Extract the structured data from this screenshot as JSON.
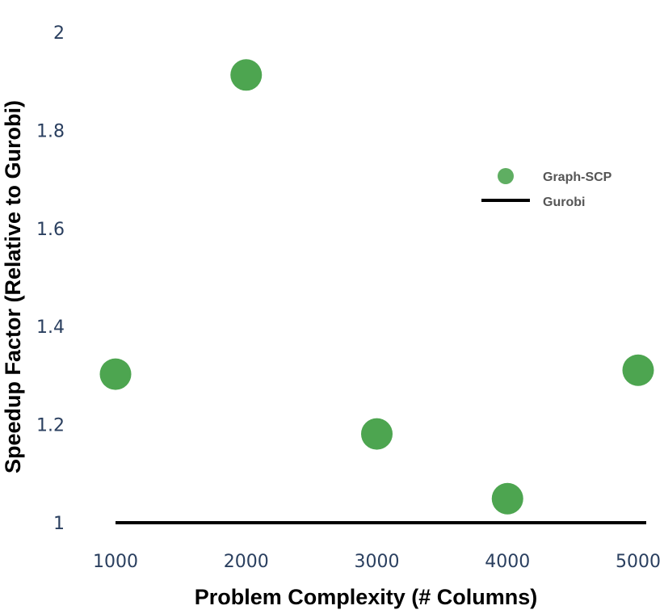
{
  "chart_data": {
    "type": "scatter",
    "title": "",
    "xlabel": "Problem Complexity (# Columns)",
    "ylabel": "Speedup Factor (Relative to Gurobi)",
    "xlim": [
      1000,
      5000
    ],
    "ylim": [
      1,
      2
    ],
    "x_ticks": [
      "1000",
      "2000",
      "3000",
      "4000",
      "5000"
    ],
    "y_ticks": [
      "1",
      "1.2",
      "1.4",
      "1.6",
      "1.8",
      "2"
    ],
    "grid": false,
    "legend_position": "right",
    "series": [
      {
        "name": "Graph-SCP",
        "type": "scatter",
        "color": "#43a047",
        "x": [
          1000,
          2000,
          3000,
          4000,
          5000
        ],
        "y": [
          1.303,
          1.913,
          1.181,
          1.049,
          1.311
        ]
      },
      {
        "name": "Gurobi",
        "type": "line",
        "color": "#000000",
        "x": [
          1000,
          5000
        ],
        "y": [
          1,
          1
        ]
      }
    ]
  }
}
